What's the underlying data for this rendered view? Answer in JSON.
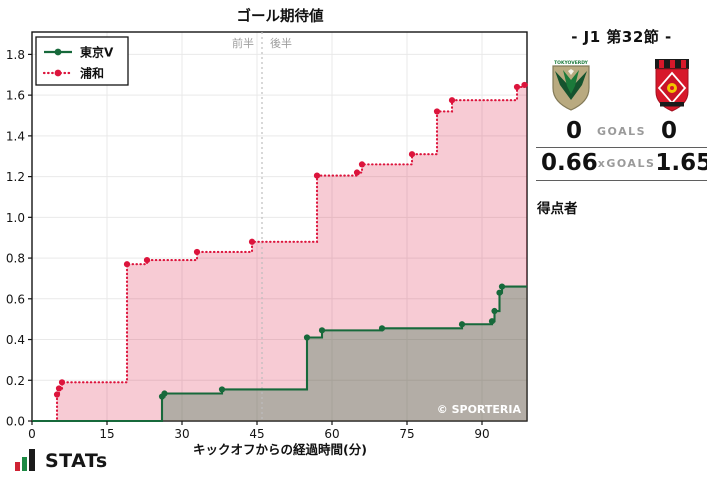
{
  "chart_data": {
    "type": "line",
    "subtype": "step-cumulative",
    "title": "ゴール期待値",
    "xlabel": "キックオフからの経過時間(分)",
    "ylabel": "",
    "xlim": [
      0,
      99
    ],
    "ylim": [
      0,
      1.91
    ],
    "x_ticks": [
      0,
      15,
      30,
      45,
      60,
      75,
      90
    ],
    "y_ticks": [
      0.0,
      0.2,
      0.4,
      0.6,
      0.8,
      1.0,
      1.2,
      1.4,
      1.6,
      1.8
    ],
    "grid": true,
    "grid_color": "#e9e9e9",
    "halftime_x": 46,
    "half_labels": {
      "first": "前半",
      "second": "後半"
    },
    "legend_position": "top-left",
    "watermark": "© SPORTERIA",
    "series": [
      {
        "name": "東京V",
        "color": "#17693b",
        "line": "solid",
        "fill_opacity": 0.3,
        "final_xg": 0.66,
        "points": [
          [
            26,
            0.12
          ],
          [
            26.5,
            0.135
          ],
          [
            38,
            0.155
          ],
          [
            55,
            0.41
          ],
          [
            58,
            0.445
          ],
          [
            70,
            0.455
          ],
          [
            86,
            0.475
          ],
          [
            92,
            0.49
          ],
          [
            92.5,
            0.54
          ],
          [
            93.5,
            0.63
          ],
          [
            94,
            0.66
          ]
        ]
      },
      {
        "name": "浦和",
        "color": "#dc143c",
        "line": "dotted",
        "fill_opacity": 0.22,
        "final_xg": 1.65,
        "points": [
          [
            5,
            0.13
          ],
          [
            5.4,
            0.16
          ],
          [
            6,
            0.19
          ],
          [
            19,
            0.77
          ],
          [
            23,
            0.79
          ],
          [
            33,
            0.83
          ],
          [
            44,
            0.88
          ],
          [
            57,
            1.205
          ],
          [
            65,
            1.22
          ],
          [
            66,
            1.26
          ],
          [
            76,
            1.31
          ],
          [
            81,
            1.52
          ],
          [
            84,
            1.575
          ],
          [
            97,
            1.64
          ],
          [
            98.5,
            1.65
          ]
        ]
      }
    ]
  },
  "panel": {
    "title": "- J1 第32節 -",
    "crests": {
      "verdy_text": "TOKYOVERDY"
    },
    "goals": {
      "home": "0",
      "label": "GOALS",
      "away": "0"
    },
    "xgoals": {
      "home": "0.66",
      "label": "xGOALS",
      "away": "1.65"
    },
    "scorers_label": "得点者"
  },
  "footer": {
    "brand": "STATs"
  }
}
